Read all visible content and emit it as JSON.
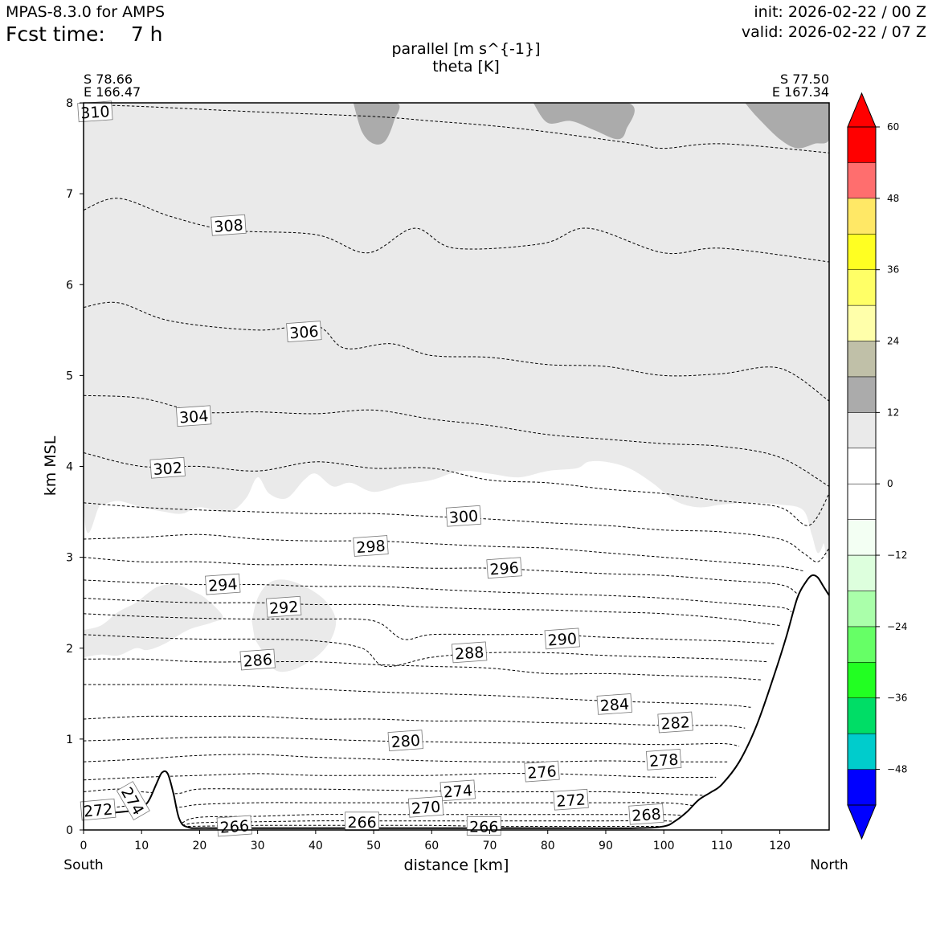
{
  "header": {
    "model": "MPAS-8.3.0 for AMPS",
    "fcst_label": "Fcst time:",
    "fcst_value": "7 h",
    "init": "init: 2026-02-22 / 00 Z",
    "valid": "valid: 2026-02-22 / 07 Z"
  },
  "chart_data": {
    "type": "cross-section",
    "title": "parallel [m s^{-1}]",
    "subtitle": "theta [K]",
    "xlabel": "distance [km]",
    "ylabel": "km MSL",
    "xlim": [
      0,
      128.5
    ],
    "ylim": [
      0,
      8
    ],
    "x_ticks": [
      "0",
      "10",
      "20",
      "30",
      "40",
      "50",
      "60",
      "70",
      "80",
      "90",
      "100",
      "110",
      "120"
    ],
    "y_ticks": [
      "0",
      "1",
      "2",
      "3",
      "4",
      "5",
      "6",
      "7",
      "8"
    ],
    "left_endpoint": {
      "lat": "S 78.66",
      "lon": "E 166.47",
      "side": "South"
    },
    "right_endpoint": {
      "lat": "S 77.50",
      "lon": "E 167.34",
      "side": "North"
    },
    "terrain": {
      "x": [
        0,
        5,
        9,
        11,
        12.5,
        13.5,
        14.5,
        15.5,
        16.5,
        18,
        22,
        40,
        60,
        80,
        95,
        100,
        102,
        104,
        106,
        108,
        110,
        113,
        116,
        119,
        121,
        123,
        124.5,
        125.5,
        126.5,
        127.5,
        128.5
      ],
      "y": [
        0.16,
        0.19,
        0.22,
        0.3,
        0.5,
        0.63,
        0.62,
        0.4,
        0.12,
        0.03,
        0.02,
        0.02,
        0.02,
        0.02,
        0.02,
        0.04,
        0.1,
        0.2,
        0.33,
        0.41,
        0.5,
        0.75,
        1.15,
        1.7,
        2.1,
        2.55,
        2.73,
        2.8,
        2.78,
        2.68,
        2.58
      ]
    },
    "theta_contours": [
      {
        "label": "310",
        "x": [
          0,
          10,
          30,
          50,
          60,
          70,
          80,
          95,
          100,
          110,
          128.5
        ],
        "y": [
          7.98,
          7.96,
          7.9,
          7.85,
          7.8,
          7.75,
          7.68,
          7.55,
          7.5,
          7.55,
          7.45
        ],
        "label_x": 2,
        "label_y": 7.9
      },
      {
        "label": "308",
        "x": [
          0,
          6,
          15,
          25,
          40,
          49,
          57,
          64,
          79,
          87,
          100,
          110,
          128.5
        ],
        "y": [
          6.82,
          6.95,
          6.75,
          6.6,
          6.55,
          6.35,
          6.62,
          6.4,
          6.45,
          6.62,
          6.35,
          6.4,
          6.25
        ],
        "label_x": 25,
        "label_y": 6.65
      },
      {
        "label": "306",
        "x": [
          0,
          6,
          15,
          30,
          40,
          45,
          53,
          60,
          70,
          80,
          90,
          100,
          110,
          120,
          128.5
        ],
        "y": [
          5.75,
          5.8,
          5.6,
          5.5,
          5.55,
          5.3,
          5.35,
          5.22,
          5.2,
          5.12,
          5.1,
          5.0,
          5.02,
          5.08,
          4.72
        ],
        "label_x": 38,
        "label_y": 5.48
      },
      {
        "label": "304",
        "x": [
          0,
          10,
          20,
          30,
          40,
          50,
          60,
          70,
          80,
          90,
          100,
          110,
          120,
          128.5
        ],
        "y": [
          4.78,
          4.75,
          4.6,
          4.6,
          4.58,
          4.62,
          4.52,
          4.45,
          4.35,
          4.3,
          4.25,
          4.22,
          4.1,
          3.78
        ],
        "label_x": 19,
        "label_y": 4.55
      },
      {
        "label": "302",
        "x": [
          0,
          10,
          20,
          30,
          40,
          50,
          60,
          70,
          80,
          90,
          100,
          110,
          120,
          125,
          128.5
        ],
        "y": [
          4.15,
          4.0,
          4.0,
          3.95,
          4.05,
          3.98,
          3.98,
          3.85,
          3.82,
          3.75,
          3.7,
          3.62,
          3.55,
          3.35,
          3.7
        ],
        "label_x": 14.5,
        "label_y": 3.98
      },
      {
        "label": "300",
        "x": [
          0,
          10,
          20,
          30,
          40,
          50,
          60,
          70,
          80,
          90,
          100,
          110,
          120,
          124,
          126.5,
          128.5
        ],
        "y": [
          3.6,
          3.55,
          3.52,
          3.5,
          3.48,
          3.48,
          3.45,
          3.42,
          3.38,
          3.35,
          3.3,
          3.28,
          3.2,
          3.05,
          2.95,
          3.1
        ],
        "label_x": 65.5,
        "label_y": 3.45
      },
      {
        "label": "298",
        "x": [
          0,
          10,
          20,
          30,
          40,
          50,
          60,
          70,
          80,
          90,
          100,
          110,
          120,
          124
        ],
        "y": [
          3.2,
          3.22,
          3.25,
          3.2,
          3.18,
          3.18,
          3.15,
          3.12,
          3.1,
          3.05,
          3.0,
          2.95,
          2.9,
          2.85
        ],
        "label_x": 49.5,
        "label_y": 3.12
      },
      {
        "label": "296",
        "x": [
          0,
          10,
          20,
          30,
          40,
          50,
          60,
          70,
          80,
          90,
          100,
          110,
          120,
          123
        ],
        "y": [
          3.0,
          2.95,
          2.95,
          2.92,
          2.92,
          2.9,
          2.88,
          2.88,
          2.85,
          2.82,
          2.8,
          2.75,
          2.7,
          2.6
        ],
        "label_x": 72.5,
        "label_y": 2.88
      },
      {
        "label": "294",
        "x": [
          0,
          10,
          20,
          30,
          40,
          50,
          60,
          70,
          80,
          90,
          100,
          110,
          120,
          122
        ],
        "y": [
          2.75,
          2.72,
          2.7,
          2.7,
          2.68,
          2.68,
          2.65,
          2.62,
          2.6,
          2.58,
          2.55,
          2.5,
          2.45,
          2.4
        ],
        "label_x": 24,
        "label_y": 2.7
      },
      {
        "label": "292",
        "x": [
          0,
          10,
          20,
          30,
          40,
          50,
          60,
          70,
          80,
          90,
          100,
          110,
          120
        ],
        "y": [
          2.55,
          2.52,
          2.5,
          2.5,
          2.48,
          2.48,
          2.45,
          2.43,
          2.42,
          2.4,
          2.38,
          2.33,
          2.25
        ],
        "label_x": 34.5,
        "label_y": 2.45
      },
      {
        "label": "290",
        "x": [
          0,
          10,
          20,
          30,
          40,
          50,
          55,
          60,
          70,
          80,
          90,
          100,
          110,
          119
        ],
        "y": [
          2.38,
          2.35,
          2.33,
          2.32,
          2.32,
          2.3,
          2.1,
          2.15,
          2.15,
          2.15,
          2.12,
          2.1,
          2.08,
          2.05
        ],
        "label_x": 82.5,
        "label_y": 2.1
      },
      {
        "label": "288",
        "x": [
          0,
          10,
          20,
          30,
          40,
          48,
          52,
          60,
          70,
          80,
          90,
          100,
          110,
          118
        ],
        "y": [
          2.15,
          2.12,
          2.1,
          2.1,
          2.08,
          2.0,
          1.8,
          1.9,
          1.95,
          1.95,
          1.92,
          1.9,
          1.88,
          1.85
        ],
        "label_x": 66.5,
        "label_y": 1.95
      },
      {
        "label": "286",
        "x": [
          0,
          10,
          20,
          30,
          40,
          50,
          60,
          70,
          80,
          90,
          100,
          110,
          117
        ],
        "y": [
          1.88,
          1.88,
          1.85,
          1.85,
          1.85,
          1.82,
          1.8,
          1.78,
          1.72,
          1.72,
          1.7,
          1.68,
          1.65
        ],
        "label_x": 30,
        "label_y": 1.87
      },
      {
        "label": "284",
        "x": [
          0,
          10,
          20,
          30,
          40,
          50,
          60,
          70,
          80,
          90,
          100,
          110,
          115
        ],
        "y": [
          1.6,
          1.6,
          1.6,
          1.58,
          1.55,
          1.52,
          1.5,
          1.48,
          1.45,
          1.42,
          1.4,
          1.38,
          1.35
        ],
        "label_x": 91.5,
        "label_y": 1.38
      },
      {
        "label": "282",
        "x": [
          0,
          10,
          20,
          30,
          40,
          50,
          60,
          70,
          80,
          90,
          100,
          110,
          114
        ],
        "y": [
          1.22,
          1.25,
          1.25,
          1.25,
          1.22,
          1.22,
          1.2,
          1.2,
          1.18,
          1.17,
          1.15,
          1.15,
          1.12
        ],
        "label_x": 102,
        "label_y": 1.18
      },
      {
        "label": "280",
        "x": [
          0,
          10,
          20,
          30,
          40,
          50,
          60,
          70,
          80,
          90,
          100,
          110,
          113
        ],
        "y": [
          0.98,
          1.0,
          1.02,
          1.02,
          1.0,
          0.98,
          0.97,
          0.96,
          0.95,
          0.95,
          0.94,
          0.95,
          0.92
        ],
        "label_x": 55.5,
        "label_y": 0.98
      },
      {
        "label": "278",
        "x": [
          0,
          10,
          20,
          30,
          40,
          50,
          60,
          70,
          80,
          90,
          100,
          111
        ],
        "y": [
          0.75,
          0.78,
          0.82,
          0.83,
          0.8,
          0.78,
          0.76,
          0.75,
          0.75,
          0.76,
          0.75,
          0.75
        ],
        "label_x": 100,
        "label_y": 0.77
      },
      {
        "label": "276",
        "x": [
          0,
          10,
          20,
          30,
          40,
          50,
          60,
          70,
          80,
          90,
          100,
          109
        ],
        "y": [
          0.55,
          0.58,
          0.6,
          0.62,
          0.6,
          0.6,
          0.6,
          0.62,
          0.62,
          0.6,
          0.58,
          0.58
        ],
        "label_x": 79,
        "label_y": 0.64
      },
      {
        "label": "274",
        "x": [
          0,
          6,
          10,
          16,
          20,
          30,
          40,
          50,
          60,
          70,
          80,
          90,
          100,
          107
        ],
        "y": [
          0.42,
          0.45,
          0.42,
          0.4,
          0.45,
          0.45,
          0.45,
          0.44,
          0.43,
          0.42,
          0.42,
          0.42,
          0.4,
          0.38
        ],
        "label_x": 64.5,
        "label_y": 0.43
      },
      {
        "label": "272",
        "x": [
          0,
          10,
          16,
          20,
          30,
          40,
          50,
          60,
          70,
          80,
          90,
          100,
          105
        ],
        "y": [
          0.2,
          0.28,
          0.25,
          0.28,
          0.3,
          0.3,
          0.3,
          0.3,
          0.3,
          0.3,
          0.3,
          0.3,
          0.27
        ],
        "label_x": 84,
        "label_y": 0.33
      },
      {
        "label": "270",
        "x": [
          17,
          20,
          30,
          40,
          50,
          60,
          70,
          80,
          90,
          100,
          103
        ],
        "y": [
          0.08,
          0.14,
          0.15,
          0.17,
          0.17,
          0.17,
          0.17,
          0.17,
          0.17,
          0.17,
          0.16
        ],
        "label_x": 59,
        "label_y": 0.25
      },
      {
        "label": "268",
        "x": [
          17,
          20,
          30,
          40,
          50,
          60,
          70,
          80,
          90,
          100,
          102
        ],
        "y": [
          0.05,
          0.08,
          0.09,
          0.1,
          0.1,
          0.1,
          0.1,
          0.1,
          0.1,
          0.1,
          0.09
        ],
        "label_x": 97,
        "label_y": 0.17
      },
      {
        "label": "266",
        "x": [
          18,
          30,
          40,
          50,
          60,
          70,
          80,
          90,
          100
        ],
        "y": [
          0.04,
          0.05,
          0.05,
          0.05,
          0.05,
          0.04,
          0.04,
          0.04,
          0.04
        ],
        "label_x": 26,
        "label_y": 0.04
      }
    ],
    "extra_labels": [
      {
        "label": "272",
        "x": 2.5,
        "y": 0.22,
        "rot": -5
      },
      {
        "label": "274",
        "x": 8.5,
        "y": 0.32,
        "rot": 60
      },
      {
        "label": "266",
        "x": 48,
        "y": 0.09,
        "rot": 0
      },
      {
        "label": "266",
        "x": 69,
        "y": 0.04,
        "rot": 0
      }
    ],
    "shading": [
      {
        "range": "12 to 18",
        "color": "#ababab",
        "polygons": [
          {
            "x": [
              46.5,
              48,
              50,
              52,
              53.5,
              54,
              46.5
            ],
            "y": [
              8,
              7.68,
              7.55,
              7.58,
              7.8,
              8,
              8
            ]
          },
          {
            "x": [
              77.5,
              80,
              84,
              88,
              92,
              93.5,
              93.8,
              77.5
            ],
            "y": [
              8,
              7.78,
              7.8,
              7.7,
              7.6,
              7.7,
              8,
              8
            ]
          },
          {
            "x": [
              114,
              116,
              120,
              123,
              126,
              128.5,
              128.5,
              114
            ],
            "y": [
              8,
              7.85,
              7.6,
              7.5,
              7.55,
              7.6,
              8,
              8
            ]
          }
        ]
      },
      {
        "range": "6 to 12",
        "color": "#eaeaea",
        "polygons": [
          {
            "x": [
              0,
              0,
              3,
              6,
              10,
              14,
              17,
              20,
              25,
              28,
              30,
              32,
              35,
              38,
              40,
              43,
              46,
              50,
              55,
              60,
              65,
              70,
              75,
              80,
              85,
              87,
              90,
              94,
              98,
              102,
              106,
              110,
              115,
              120,
              124,
              125.5,
              126.5,
              127.5,
              128.5,
              128.5,
              0
            ],
            "y": [
              8,
              3.6,
              3.58,
              3.62,
              3.55,
              3.5,
              3.48,
              3.55,
              3.5,
              3.65,
              3.88,
              3.7,
              3.65,
              3.85,
              3.92,
              3.78,
              3.82,
              3.72,
              3.8,
              3.85,
              3.95,
              3.92,
              3.88,
              3.95,
              3.98,
              4.05,
              4.05,
              3.98,
              3.82,
              3.62,
              3.55,
              3.58,
              3.6,
              3.58,
              3.52,
              3.25,
              3.05,
              3.15,
              3.4,
              8,
              8
            ]
          },
          {
            "x": [
              0,
              3,
              6,
              9,
              11,
              13,
              16,
              19,
              21,
              24,
              22,
              18,
              14,
              11,
              9,
              6,
              3,
              0
            ],
            "y": [
              2.2,
              2.25,
              2.4,
              2.5,
              2.6,
              2.68,
              2.7,
              2.62,
              2.55,
              2.35,
              2.28,
              2.2,
              2.05,
              1.98,
              2.0,
              1.92,
              1.93,
              1.9
            ]
          },
          {
            "x": [
              29,
              30,
              32,
              35,
              39,
              42,
              43.5,
              42.5,
              40,
              36,
              33,
              31,
              29.5
            ],
            "y": [
              2.3,
              2.55,
              2.72,
              2.75,
              2.65,
              2.5,
              2.3,
              2.08,
              1.9,
              1.76,
              1.76,
              1.95,
              2.1
            ]
          }
        ]
      }
    ],
    "colorbar": {
      "label": "parallel [m s^{-1}]",
      "boundaries": [
        -54,
        -48,
        -42,
        -36,
        -30,
        -24,
        -18,
        -12,
        -6,
        0,
        6,
        12,
        18,
        24,
        30,
        36,
        42,
        48,
        54,
        60
      ],
      "colors": [
        "#0000ff",
        "#00cccc",
        "#00dd66",
        "#22ff22",
        "#66ff66",
        "#aaffaa",
        "#ddffdd",
        "#f3fff3",
        "#ffffff",
        "#ffffff",
        "#eaeaea",
        "#ababab",
        "#c0c0a8",
        "#ffffaa",
        "#ffff66",
        "#ffff22",
        "#ffe866",
        "#ff6e6e",
        "#ff0000"
      ],
      "under_color": "#0000ff",
      "over_color": "#ff0000",
      "tick_labels": [
        "−48",
        "−36",
        "−24",
        "−12",
        "0",
        "12",
        "24",
        "36",
        "48",
        "60"
      ],
      "tick_values": [
        -48,
        -36,
        -24,
        -12,
        0,
        12,
        24,
        36,
        48,
        60
      ]
    }
  }
}
